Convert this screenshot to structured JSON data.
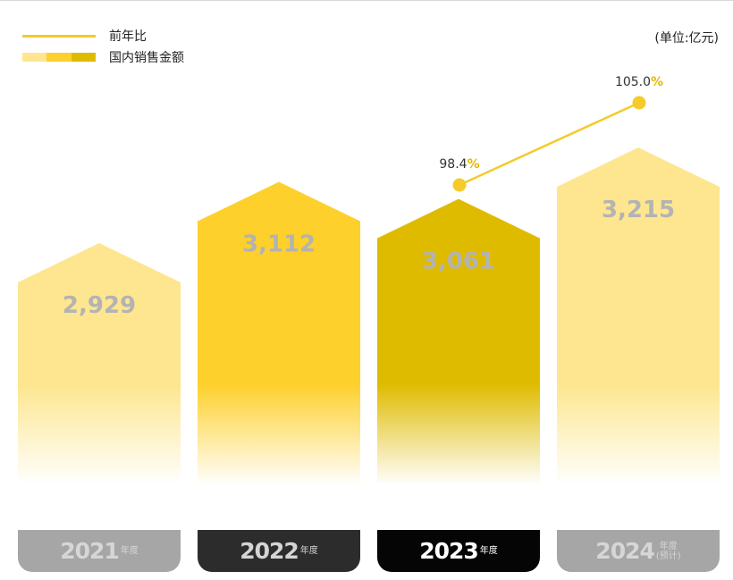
{
  "legend": {
    "yoy_label": "前年比",
    "sales_label": "国内销售金额",
    "swatch_colors": [
      "#fde68f",
      "#fed02c",
      "#dfbb00"
    ]
  },
  "unit_label": "(单位:亿元)",
  "chart_data": {
    "type": "bar",
    "categories": [
      "2021",
      "2022",
      "2023",
      "2024"
    ],
    "category_suffixes": [
      [
        "年度"
      ],
      [
        "年度"
      ],
      [
        "年度"
      ],
      [
        "年度",
        "(预计)"
      ]
    ],
    "series": [
      {
        "name": "国内销售金额",
        "values": [
          2929,
          3112,
          3061,
          3215
        ],
        "labels": [
          "2,929",
          "3,112",
          "3,061",
          "3,215"
        ]
      },
      {
        "name": "前年比",
        "values": [
          null,
          null,
          98.4,
          105.0
        ],
        "labels": [
          "",
          "",
          "98.4",
          "105.0"
        ],
        "unit": "%"
      }
    ],
    "bar_colors": [
      "#fde68f",
      "#fed02c",
      "#dfbb00",
      "#fde68f"
    ],
    "tab_colors": [
      "#a6a6a6",
      "#2c2c2c",
      "#050505",
      "#a6a6a6"
    ],
    "tab_text_colors": [
      "#d6d6d6",
      "#d4d4d4",
      "#ffffff",
      "#d6d6d6"
    ],
    "line_color": "#f5ca2b"
  }
}
